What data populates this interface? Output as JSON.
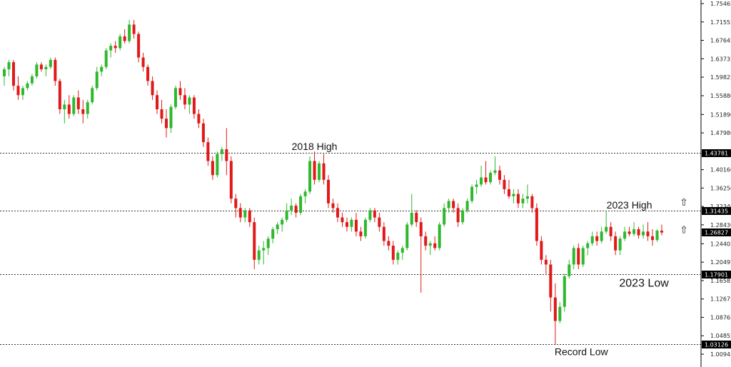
{
  "chart_data": {
    "type": "candlestick",
    "title": "",
    "xlabel": "",
    "ylabel": "",
    "ylim": [
      1.00945,
      1.75465
    ],
    "grid": false,
    "y_ticks": [
      "1.75465",
      "1.71555",
      "1.67645",
      "1.63735",
      "1.59825",
      "1.55880",
      "1.51890",
      "1.47980",
      "1.40160",
      "1.36250",
      "1.32340",
      "1.28430",
      "1.24405",
      "1.20495",
      "1.16585",
      "1.12675",
      "1.08765",
      "1.04855",
      "1.00945"
    ],
    "levels": [
      {
        "value": 1.43781,
        "label": "1.43781",
        "style": "dotted"
      },
      {
        "value": 1.31435,
        "label": "1.31435",
        "style": "dotted"
      },
      {
        "value": 1.26827,
        "label": "1.26827",
        "style": "current"
      },
      {
        "value": 1.17901,
        "label": "1.17901",
        "style": "dotted"
      },
      {
        "value": 1.03126,
        "label": "1.03126",
        "style": "dotted"
      }
    ],
    "annotations": [
      {
        "text": "2018 High",
        "candle": 67,
        "value": 1.43781,
        "size": "normal"
      },
      {
        "text": "2023 High",
        "candle": 135,
        "value": 1.31435,
        "size": "normal"
      },
      {
        "text": "2023 Low",
        "candle": 136,
        "value": 1.17901,
        "size": "large"
      },
      {
        "text": "Record Low",
        "candle": 124,
        "value": 1.03126,
        "size": "normal"
      }
    ],
    "arrows": [
      {
        "icon": "up-arrow-icon",
        "glyph": "⇧",
        "value": 1.3325
      },
      {
        "icon": "up-arrow-icon",
        "glyph": "⇧",
        "value": 1.2745
      }
    ],
    "colors": {
      "up": "#2eb82e",
      "down": "#e01919",
      "level_box": "#000000",
      "dotted_line": "#333333"
    },
    "candles": [
      [
        1.6,
        1.62,
        1.58,
        1.615
      ],
      [
        1.615,
        1.635,
        1.6,
        1.63
      ],
      [
        1.63,
        1.635,
        1.57,
        1.58
      ],
      [
        1.58,
        1.6,
        1.55,
        1.56
      ],
      [
        1.56,
        1.58,
        1.55,
        1.575
      ],
      [
        1.575,
        1.59,
        1.57,
        1.585
      ],
      [
        1.585,
        1.605,
        1.58,
        1.6
      ],
      [
        1.6,
        1.63,
        1.595,
        1.625
      ],
      [
        1.625,
        1.63,
        1.61,
        1.615
      ],
      [
        1.615,
        1.625,
        1.6,
        1.62
      ],
      [
        1.62,
        1.64,
        1.615,
        1.635
      ],
      [
        1.635,
        1.64,
        1.58,
        1.59
      ],
      [
        1.59,
        1.595,
        1.52,
        1.53
      ],
      [
        1.53,
        1.55,
        1.5,
        1.54
      ],
      [
        1.54,
        1.56,
        1.51,
        1.52
      ],
      [
        1.52,
        1.56,
        1.515,
        1.555
      ],
      [
        1.555,
        1.57,
        1.52,
        1.53
      ],
      [
        1.53,
        1.55,
        1.5,
        1.52
      ],
      [
        1.52,
        1.55,
        1.51,
        1.545
      ],
      [
        1.545,
        1.58,
        1.54,
        1.575
      ],
      [
        1.575,
        1.62,
        1.57,
        1.61
      ],
      [
        1.61,
        1.625,
        1.6,
        1.62
      ],
      [
        1.62,
        1.66,
        1.615,
        1.655
      ],
      [
        1.655,
        1.67,
        1.64,
        1.665
      ],
      [
        1.665,
        1.675,
        1.65,
        1.66
      ],
      [
        1.66,
        1.69,
        1.655,
        1.685
      ],
      [
        1.685,
        1.7,
        1.67,
        1.675
      ],
      [
        1.675,
        1.72,
        1.67,
        1.71
      ],
      [
        1.71,
        1.72,
        1.68,
        1.69
      ],
      [
        1.69,
        1.695,
        1.63,
        1.64
      ],
      [
        1.64,
        1.65,
        1.61,
        1.62
      ],
      [
        1.62,
        1.625,
        1.58,
        1.59
      ],
      [
        1.59,
        1.6,
        1.55,
        1.56
      ],
      [
        1.56,
        1.57,
        1.52,
        1.53
      ],
      [
        1.53,
        1.55,
        1.5,
        1.51
      ],
      [
        1.51,
        1.53,
        1.47,
        1.49
      ],
      [
        1.49,
        1.54,
        1.48,
        1.535
      ],
      [
        1.535,
        1.58,
        1.53,
        1.575
      ],
      [
        1.575,
        1.59,
        1.55,
        1.56
      ],
      [
        1.56,
        1.575,
        1.53,
        1.54
      ],
      [
        1.54,
        1.56,
        1.52,
        1.555
      ],
      [
        1.555,
        1.56,
        1.51,
        1.52
      ],
      [
        1.52,
        1.53,
        1.49,
        1.5
      ],
      [
        1.5,
        1.51,
        1.45,
        1.46
      ],
      [
        1.46,
        1.47,
        1.41,
        1.42
      ],
      [
        1.42,
        1.43,
        1.38,
        1.39
      ],
      [
        1.39,
        1.44,
        1.385,
        1.435
      ],
      [
        1.435,
        1.45,
        1.42,
        1.445
      ],
      [
        1.445,
        1.49,
        1.39,
        1.42
      ],
      [
        1.42,
        1.43,
        1.33,
        1.34
      ],
      [
        1.34,
        1.35,
        1.3,
        1.32
      ],
      [
        1.32,
        1.33,
        1.29,
        1.3
      ],
      [
        1.3,
        1.32,
        1.29,
        1.315
      ],
      [
        1.315,
        1.32,
        1.28,
        1.29
      ],
      [
        1.29,
        1.3,
        1.19,
        1.21
      ],
      [
        1.21,
        1.24,
        1.2,
        1.23
      ],
      [
        1.23,
        1.25,
        1.2,
        1.235
      ],
      [
        1.235,
        1.26,
        1.22,
        1.255
      ],
      [
        1.255,
        1.28,
        1.245,
        1.275
      ],
      [
        1.275,
        1.29,
        1.265,
        1.285
      ],
      [
        1.285,
        1.3,
        1.27,
        1.295
      ],
      [
        1.295,
        1.33,
        1.29,
        1.315
      ],
      [
        1.315,
        1.34,
        1.305,
        1.325
      ],
      [
        1.325,
        1.33,
        1.3,
        1.31
      ],
      [
        1.31,
        1.35,
        1.305,
        1.345
      ],
      [
        1.345,
        1.36,
        1.33,
        1.355
      ],
      [
        1.355,
        1.43,
        1.35,
        1.42
      ],
      [
        1.42,
        1.44,
        1.37,
        1.38
      ],
      [
        1.38,
        1.42,
        1.375,
        1.415
      ],
      [
        1.415,
        1.435,
        1.37,
        1.38
      ],
      [
        1.38,
        1.39,
        1.32,
        1.33
      ],
      [
        1.33,
        1.34,
        1.31,
        1.32
      ],
      [
        1.32,
        1.33,
        1.29,
        1.3
      ],
      [
        1.3,
        1.31,
        1.28,
        1.29
      ],
      [
        1.29,
        1.3,
        1.27,
        1.28
      ],
      [
        1.28,
        1.3,
        1.27,
        1.295
      ],
      [
        1.295,
        1.31,
        1.26,
        1.27
      ],
      [
        1.27,
        1.28,
        1.25,
        1.26
      ],
      [
        1.26,
        1.3,
        1.255,
        1.295
      ],
      [
        1.295,
        1.32,
        1.29,
        1.315
      ],
      [
        1.315,
        1.32,
        1.29,
        1.3
      ],
      [
        1.3,
        1.31,
        1.27,
        1.28
      ],
      [
        1.28,
        1.29,
        1.24,
        1.25
      ],
      [
        1.25,
        1.26,
        1.23,
        1.24
      ],
      [
        1.24,
        1.25,
        1.2,
        1.21
      ],
      [
        1.21,
        1.23,
        1.2,
        1.225
      ],
      [
        1.225,
        1.24,
        1.21,
        1.235
      ],
      [
        1.235,
        1.29,
        1.23,
        1.285
      ],
      [
        1.285,
        1.35,
        1.28,
        1.31
      ],
      [
        1.31,
        1.315,
        1.28,
        1.29
      ],
      [
        1.29,
        1.3,
        1.14,
        1.26
      ],
      [
        1.26,
        1.27,
        1.23,
        1.24
      ],
      [
        1.24,
        1.25,
        1.22,
        1.245
      ],
      [
        1.245,
        1.26,
        1.23,
        1.235
      ],
      [
        1.235,
        1.29,
        1.23,
        1.285
      ],
      [
        1.285,
        1.33,
        1.28,
        1.32
      ],
      [
        1.32,
        1.34,
        1.31,
        1.335
      ],
      [
        1.335,
        1.34,
        1.31,
        1.32
      ],
      [
        1.32,
        1.33,
        1.28,
        1.29
      ],
      [
        1.29,
        1.32,
        1.285,
        1.315
      ],
      [
        1.315,
        1.34,
        1.31,
        1.335
      ],
      [
        1.335,
        1.37,
        1.33,
        1.365
      ],
      [
        1.365,
        1.38,
        1.35,
        1.37
      ],
      [
        1.37,
        1.41,
        1.365,
        1.385
      ],
      [
        1.385,
        1.42,
        1.37,
        1.375
      ],
      [
        1.375,
        1.4,
        1.37,
        1.395
      ],
      [
        1.395,
        1.43,
        1.39,
        1.4
      ],
      [
        1.4,
        1.41,
        1.37,
        1.38
      ],
      [
        1.38,
        1.39,
        1.35,
        1.36
      ],
      [
        1.36,
        1.38,
        1.34,
        1.345
      ],
      [
        1.345,
        1.36,
        1.33,
        1.35
      ],
      [
        1.35,
        1.36,
        1.32,
        1.33
      ],
      [
        1.33,
        1.35,
        1.32,
        1.34
      ],
      [
        1.34,
        1.37,
        1.33,
        1.345
      ],
      [
        1.345,
        1.35,
        1.31,
        1.32
      ],
      [
        1.32,
        1.33,
        1.24,
        1.25
      ],
      [
        1.25,
        1.26,
        1.2,
        1.21
      ],
      [
        1.21,
        1.22,
        1.18,
        1.2
      ],
      [
        1.2,
        1.21,
        1.1,
        1.13
      ],
      [
        1.13,
        1.16,
        1.03,
        1.08
      ],
      [
        1.08,
        1.12,
        1.075,
        1.11
      ],
      [
        1.11,
        1.18,
        1.1,
        1.175
      ],
      [
        1.175,
        1.21,
        1.17,
        1.2
      ],
      [
        1.2,
        1.24,
        1.19,
        1.235
      ],
      [
        1.235,
        1.245,
        1.19,
        1.2
      ],
      [
        1.2,
        1.24,
        1.195,
        1.235
      ],
      [
        1.235,
        1.25,
        1.22,
        1.245
      ],
      [
        1.245,
        1.27,
        1.24,
        1.26
      ],
      [
        1.26,
        1.27,
        1.24,
        1.25
      ],
      [
        1.25,
        1.28,
        1.245,
        1.27
      ],
      [
        1.27,
        1.315,
        1.265,
        1.28
      ],
      [
        1.28,
        1.29,
        1.25,
        1.26
      ],
      [
        1.26,
        1.27,
        1.22,
        1.23
      ],
      [
        1.23,
        1.26,
        1.22,
        1.255
      ],
      [
        1.255,
        1.28,
        1.25,
        1.27
      ],
      [
        1.27,
        1.28,
        1.26,
        1.265
      ],
      [
        1.265,
        1.29,
        1.26,
        1.275
      ],
      [
        1.275,
        1.28,
        1.255,
        1.262
      ],
      [
        1.262,
        1.285,
        1.255,
        1.27
      ],
      [
        1.27,
        1.29,
        1.25,
        1.26
      ],
      [
        1.26,
        1.275,
        1.24,
        1.252
      ],
      [
        1.252,
        1.275,
        1.248,
        1.272
      ],
      [
        1.272,
        1.285,
        1.262,
        1.268
      ]
    ]
  }
}
